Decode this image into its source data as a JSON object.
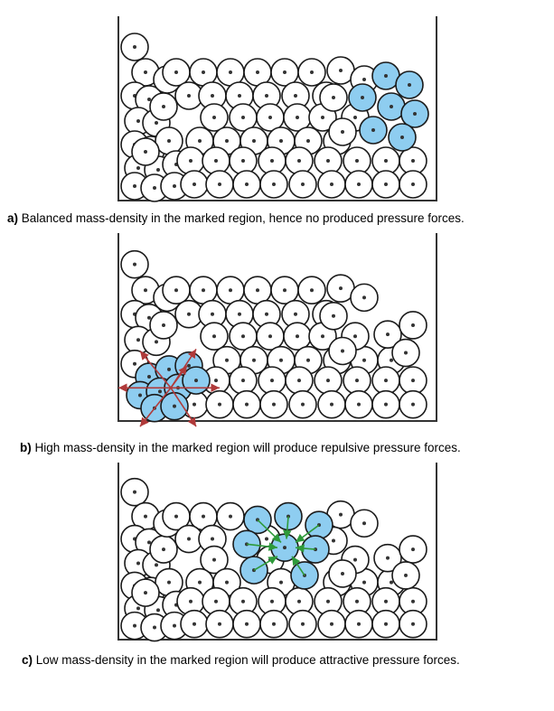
{
  "figure": {
    "colors": {
      "particle_stroke": "#1a1a1a",
      "particle_fill": "#ffffff",
      "marked_fill": "#8ecdf0",
      "repulsive_arrow": "#b03a3a",
      "attractive_arrow": "#2e9a3a",
      "container": "#333333"
    },
    "panels": [
      {
        "id": "a",
        "label": "a)",
        "caption": "Balanced mass-density in the marked region, hence no produced pressure forces.",
        "marked_region": "top-right",
        "force_type": "none"
      },
      {
        "id": "b",
        "label": "b)",
        "caption": "High mass-density in the marked region will produce repulsive pressure forces.",
        "marked_region": "bottom-left",
        "force_type": "repulsive"
      },
      {
        "id": "c",
        "label": "c)",
        "caption": "Low mass-density in the marked region will produce attractive pressure forces.",
        "marked_region": "center",
        "force_type": "attractive"
      }
    ]
  }
}
